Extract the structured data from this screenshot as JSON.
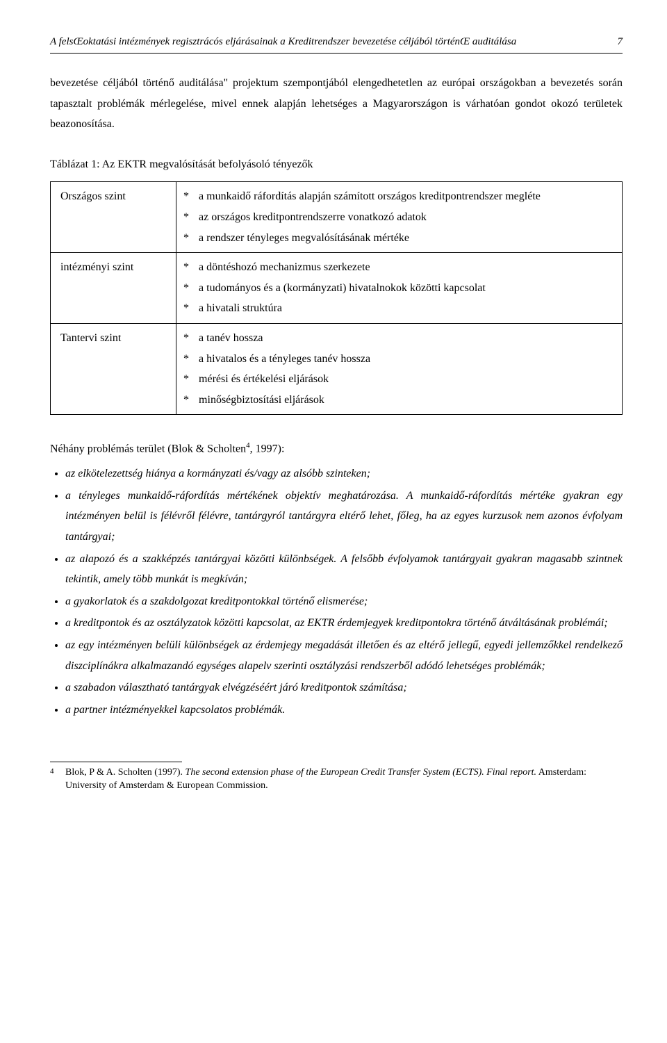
{
  "header": {
    "running_title": "A felsŒoktatási intézmények regisztrácós eljárásainak a Kreditrendszer bevezetése céljából történŒ auditálása",
    "page_number": "7"
  },
  "paragraph": "bevezetése céljából történő auditálása\" projektum szempontjából elengedhetetlen az európai országokban a bevezetés során tapasztalt problémák mérlegelése, mivel ennek alapján lehetséges a Magyarországon is várhatóan gondot okozó területek beazonosítása.",
  "table": {
    "caption": "Táblázat 1: Az EKTR megvalósítását befolyásoló tényezők",
    "rows": [
      {
        "level": "Országos szint",
        "items": [
          "a munkaidő ráfordítás alapján számított országos kreditpontrendszer megléte",
          "az országos kreditpontrendszerre vonatkozó adatok",
          "a rendszer tényleges megvalósításának mértéke"
        ]
      },
      {
        "level": "intézményi szint",
        "items": [
          "a döntéshozó mechanizmus szerkezete",
          "a tudományos és a (kormányzati) hivatalnokok közötti kapcsolat",
          "a hivatali struktúra"
        ]
      },
      {
        "level": "Tantervi szint",
        "items": [
          "a tanév hossza",
          "a hivatalos és a tényleges tanév hossza",
          "mérési és értékelési eljárások",
          "minőségbiztosítási eljárások"
        ]
      }
    ]
  },
  "problems": {
    "intro_prefix": "Néhány problémás terület (Blok & Scholten",
    "intro_sup": "4",
    "intro_suffix": ", 1997):",
    "items": [
      "az elkötelezettség hiánya a kormányzati és/vagy az alsóbb szinteken;",
      "a tényleges munkaidő-ráfordítás mértékének objektív meghatározása. A munkaidő-ráfordítás mértéke gyakran egy intézményen belül is félévről félévre, tantárgyról tantárgyra eltérő lehet, főleg, ha az egyes kurzusok nem azonos évfolyam tantárgyai;",
      "az alapozó és a szakképzés tantárgyai közötti különbségek. A felsőbb évfolyamok tantárgyait gyakran magasabb szintnek tekintik, amely több munkát is megkíván;",
      "a gyakorlatok és a szakdolgozat kreditpontokkal történő elismerése;",
      "a kreditpontok és az osztályzatok közötti kapcsolat, az EKTR érdemjegyek kreditpontokra történő átváltásának problémái;",
      "az egy intézményen belüli különbségek az érdemjegy megadását illetően és az eltérő jellegű, egyedi jellemzőkkel rendelkező diszciplínákra alkalmazandó egységes alapelv szerinti osztályzási rendszerből adódó lehetséges problémák;",
      "a szabadon választható tantárgyak elvégzéséért járó kreditpontok számítása;",
      "a partner intézményekkel kapcsolatos problémák."
    ]
  },
  "footnote": {
    "mark": "4",
    "author": "Blok, P & A. Scholten (1997). ",
    "title": "The second extension phase of the European Credit Transfer System (ECTS). Final report.",
    "rest": " Amsterdam: University of Amsterdam & European Commission."
  }
}
